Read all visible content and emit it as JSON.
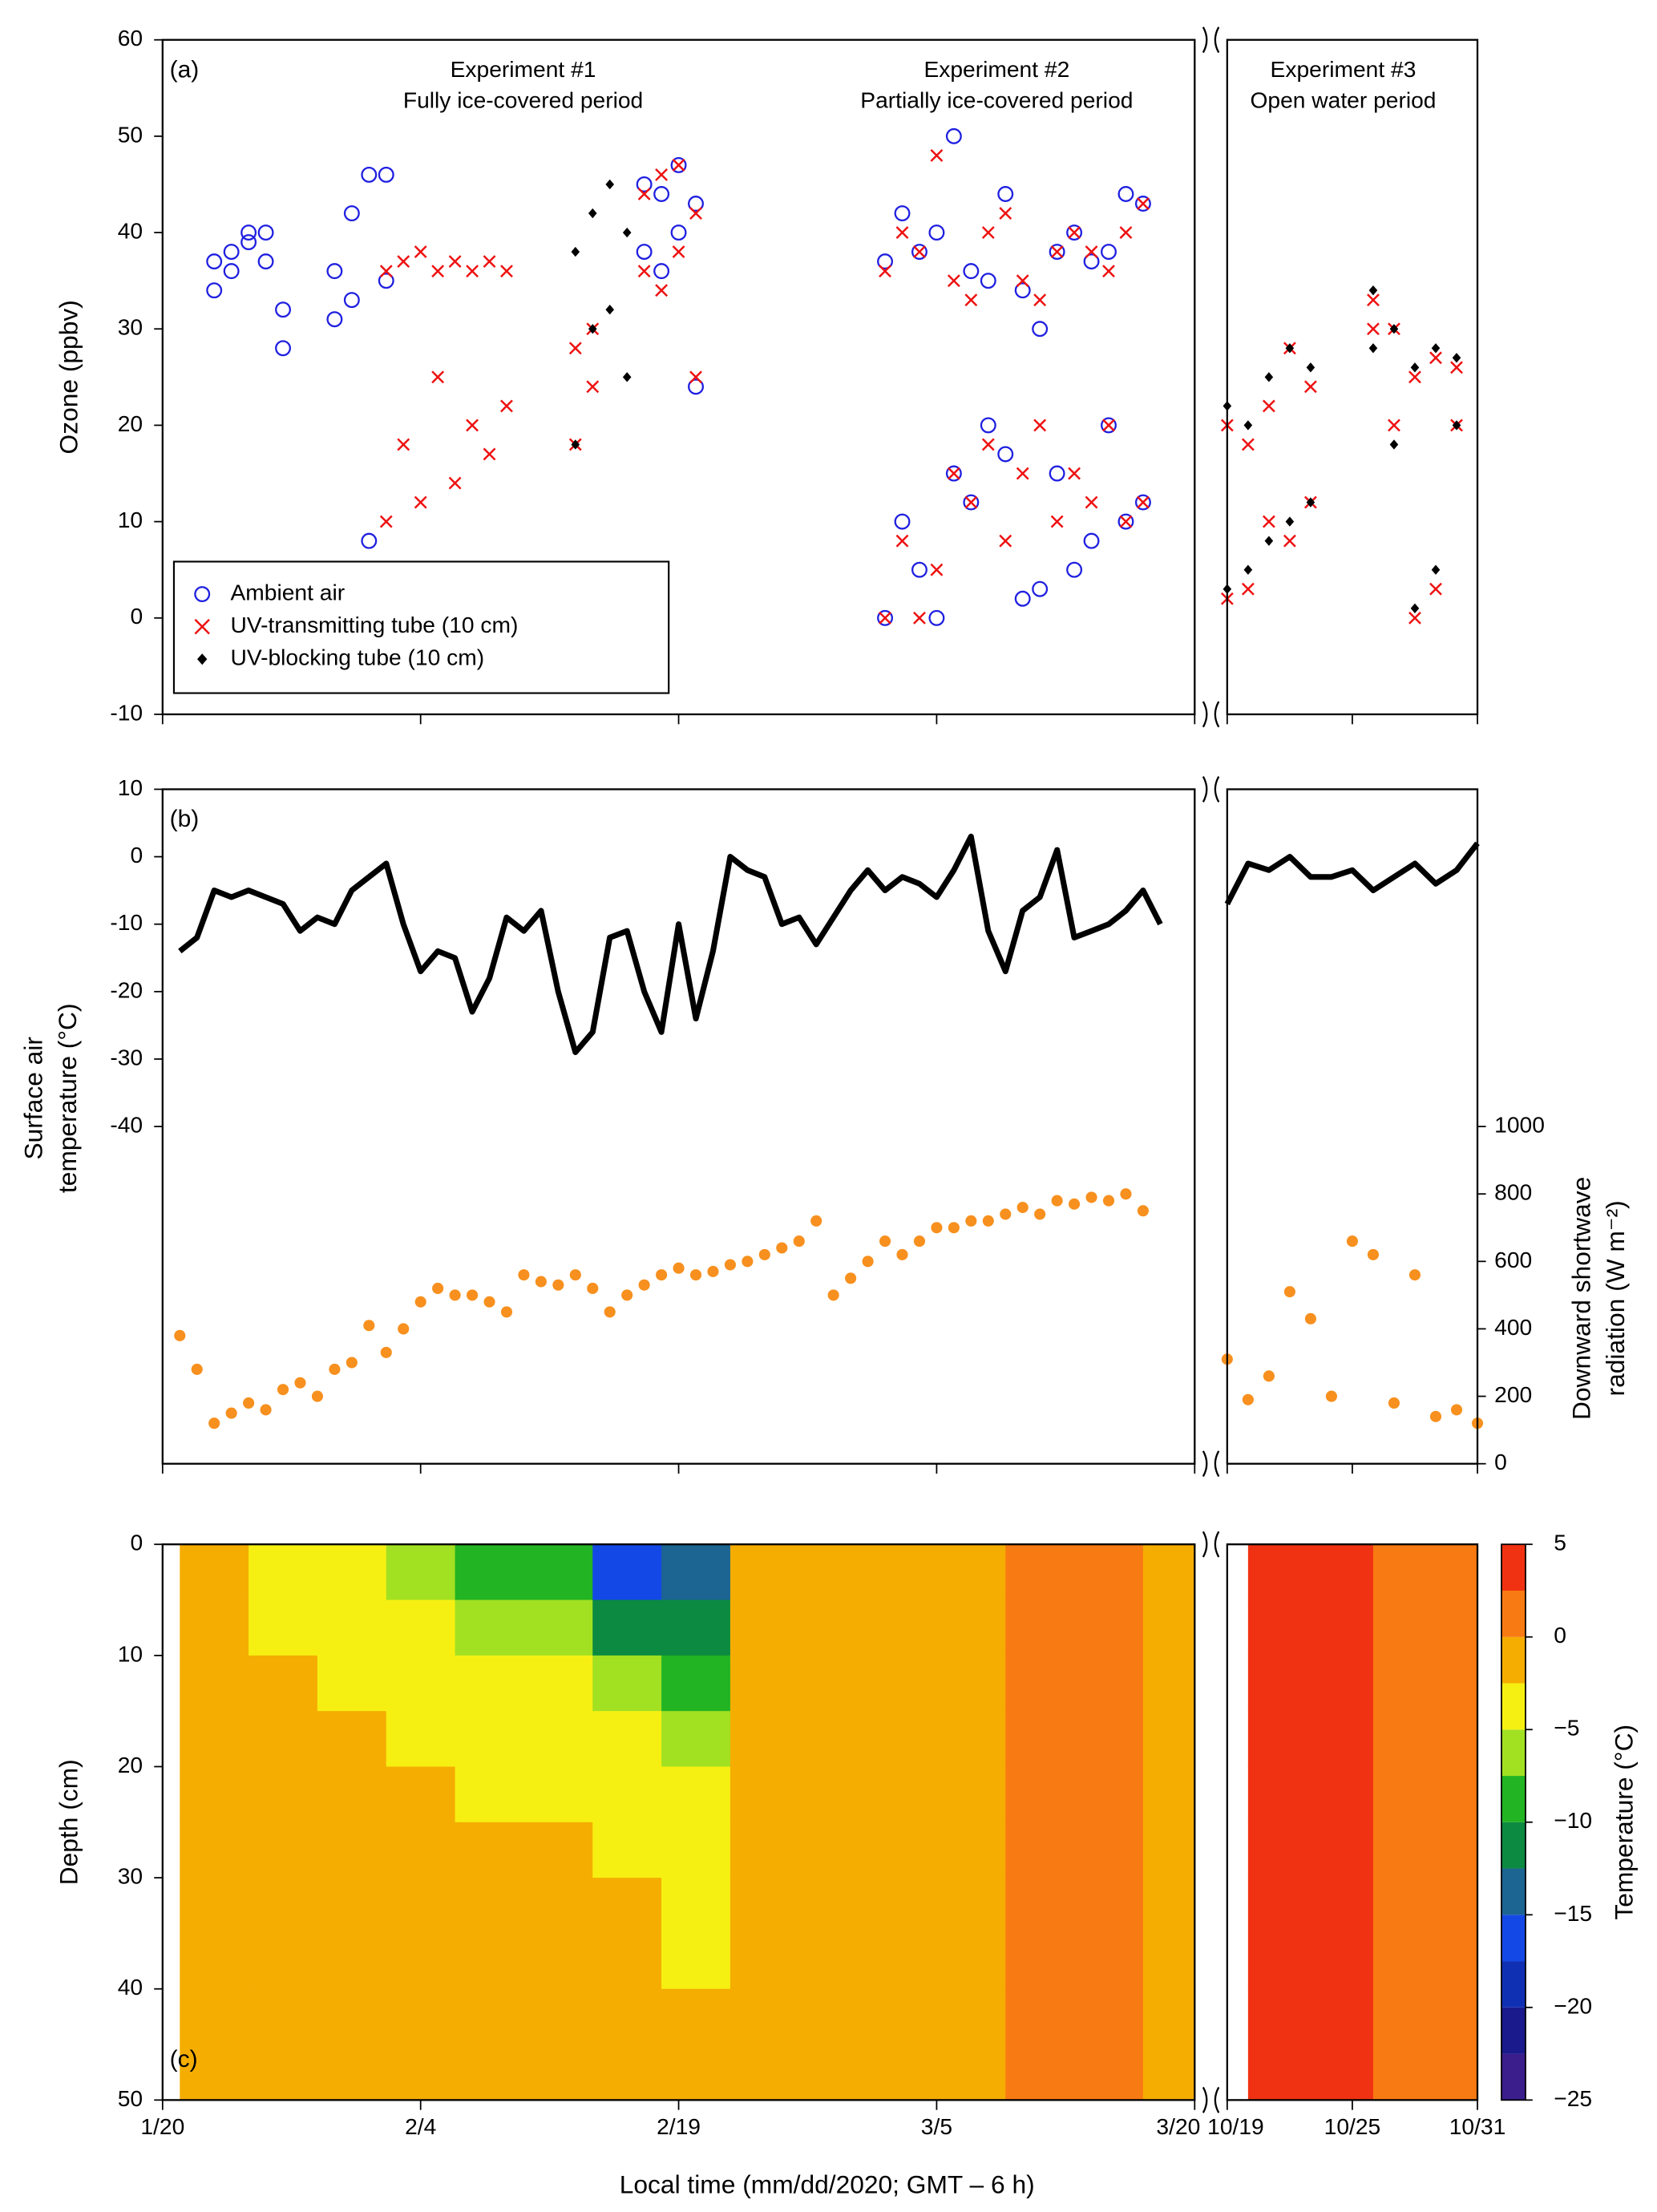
{
  "x_axis": {
    "label": "Local time (mm/dd/2020; GMT – 6 h)",
    "segments": [
      [
        "1/20",
        "3/20"
      ],
      [
        "10/19",
        "10/31"
      ]
    ],
    "xticks": [
      "1/20",
      "2/4",
      "2/19",
      "3/5",
      "3/20",
      "10/19",
      "10/25",
      "10/31"
    ]
  },
  "chart_data": [
    {
      "type": "scatter",
      "panel": "(a)",
      "ylabel": "Ozone (ppbv)",
      "annotations": [
        [
          "Experiment #1",
          "Fully ice-covered period"
        ],
        [
          "Experiment #2",
          "Partially ice-covered period"
        ],
        [
          "Experiment #3",
          "Open water period"
        ]
      ],
      "ylim": [
        -10,
        60
      ],
      "yticks": [
        -10,
        0,
        10,
        20,
        30,
        40,
        50,
        60
      ],
      "legend": "lower left",
      "series": [
        {
          "name": "Ambient air",
          "color": "#1f1fe0",
          "marker": "circle",
          "x": [
            "1/23",
            "1/23",
            "1/24",
            "1/24",
            "1/25",
            "1/25",
            "1/26",
            "1/26",
            "1/27",
            "1/27",
            "1/30",
            "1/30",
            "1/31",
            "1/31",
            "2/1",
            "2/1",
            "2/2",
            "2/2",
            "2/17",
            "2/17",
            "2/18",
            "2/18",
            "2/19",
            "2/19",
            "2/20",
            "2/20",
            "3/2",
            "3/2",
            "3/3",
            "3/3",
            "3/4",
            "3/4",
            "3/5",
            "3/5",
            "3/6",
            "3/6",
            "3/7",
            "3/7",
            "3/8",
            "3/8",
            "3/9",
            "3/9",
            "3/10",
            "3/10",
            "3/11",
            "3/11",
            "3/12",
            "3/12",
            "3/13",
            "3/13",
            "3/14",
            "3/14",
            "3/15",
            "3/15",
            "3/16",
            "3/16",
            "3/17",
            "3/17"
          ],
          "values": [
            34,
            37,
            36,
            38,
            39,
            40,
            37,
            40,
            28,
            32,
            31,
            36,
            33,
            42,
            8,
            46,
            35,
            46,
            38,
            45,
            36,
            44,
            40,
            47,
            24,
            43,
            0,
            37,
            10,
            42,
            5,
            38,
            0,
            40,
            15,
            50,
            12,
            36,
            20,
            35,
            17,
            44,
            2,
            34,
            3,
            30,
            15,
            38,
            5,
            40,
            8,
            37,
            20,
            38,
            10,
            44,
            12,
            43
          ]
        },
        {
          "name": "UV-transmitting tube (10 cm)",
          "color": "#ee1111",
          "marker": "x",
          "x": [
            "2/2",
            "2/2",
            "2/3",
            "2/3",
            "2/4",
            "2/4",
            "2/5",
            "2/5",
            "2/6",
            "2/6",
            "2/7",
            "2/7",
            "2/8",
            "2/8",
            "2/9",
            "2/9",
            "2/13",
            "2/13",
            "2/14",
            "2/14",
            "2/17",
            "2/17",
            "2/18",
            "2/18",
            "2/19",
            "2/19",
            "2/20",
            "2/20",
            "3/2",
            "3/2",
            "3/3",
            "3/3",
            "3/4",
            "3/4",
            "3/5",
            "3/5",
            "3/6",
            "3/6",
            "3/7",
            "3/7",
            "3/8",
            "3/8",
            "3/9",
            "3/9",
            "3/10",
            "3/10",
            "3/11",
            "3/11",
            "3/12",
            "3/12",
            "3/13",
            "3/13",
            "3/14",
            "3/14",
            "3/15",
            "3/15",
            "3/16",
            "3/16",
            "3/17",
            "3/17",
            "10/19",
            "10/19",
            "10/20",
            "10/20",
            "10/21",
            "10/21",
            "10/22",
            "10/22",
            "10/23",
            "10/23",
            "10/26",
            "10/26",
            "10/27",
            "10/27",
            "10/28",
            "10/28",
            "10/29",
            "10/29",
            "10/30",
            "10/30"
          ],
          "values": [
            10,
            36,
            18,
            37,
            12,
            38,
            25,
            36,
            14,
            37,
            20,
            36,
            17,
            37,
            22,
            36,
            18,
            28,
            24,
            30,
            36,
            44,
            34,
            46,
            38,
            47,
            25,
            42,
            0,
            36,
            8,
            40,
            0,
            38,
            5,
            48,
            15,
            35,
            12,
            33,
            18,
            40,
            8,
            42,
            15,
            35,
            20,
            33,
            10,
            38,
            15,
            40,
            12,
            38,
            20,
            36,
            10,
            40,
            12,
            43,
            2,
            20,
            3,
            18,
            10,
            22,
            8,
            28,
            12,
            24,
            30,
            33,
            20,
            30,
            0,
            25,
            3,
            27,
            20,
            26
          ]
        },
        {
          "name": "UV-blocking tube (10 cm)",
          "color": "#000000",
          "marker": "diamond",
          "x": [
            "2/13",
            "2/13",
            "2/14",
            "2/14",
            "2/15",
            "2/15",
            "2/16",
            "2/16",
            "10/19",
            "10/19",
            "10/20",
            "10/20",
            "10/21",
            "10/21",
            "10/22",
            "10/22",
            "10/23",
            "10/23",
            "10/26",
            "10/26",
            "10/27",
            "10/27",
            "10/28",
            "10/28",
            "10/29",
            "10/29",
            "10/30",
            "10/30"
          ],
          "values": [
            18,
            38,
            30,
            42,
            32,
            45,
            25,
            40,
            3,
            22,
            5,
            20,
            8,
            25,
            10,
            28,
            12,
            26,
            28,
            34,
            18,
            30,
            1,
            26,
            5,
            28,
            20,
            27
          ]
        }
      ]
    },
    {
      "type": "line",
      "panel": "(b)",
      "ylabel": [
        "Surface air",
        "temperature (°C)"
      ],
      "y2label": [
        "Downward shortwave",
        "radiation (W m⁻²)"
      ],
      "ylim": [
        -90,
        10
      ],
      "yticks": [
        -40,
        -30,
        -20,
        -10,
        0,
        10
      ],
      "y2lim": [
        0,
        2000
      ],
      "y2ticks": [
        0,
        200,
        400,
        600,
        800,
        1000
      ],
      "series": [
        {
          "type": "line",
          "color": "#000000",
          "x": [
            "1/21",
            "1/22",
            "1/23",
            "1/24",
            "1/25",
            "1/26",
            "1/27",
            "1/28",
            "1/29",
            "1/30",
            "1/31",
            "2/1",
            "2/2",
            "2/3",
            "2/4",
            "2/5",
            "2/6",
            "2/7",
            "2/8",
            "2/9",
            "2/10",
            "2/11",
            "2/12",
            "2/13",
            "2/14",
            "2/15",
            "2/16",
            "2/17",
            "2/18",
            "2/19",
            "2/20",
            "2/21",
            "2/22",
            "2/23",
            "2/24",
            "2/25",
            "2/26",
            "2/27",
            "2/28",
            "2/29",
            "3/1",
            "3/2",
            "3/3",
            "3/4",
            "3/5",
            "3/6",
            "3/7",
            "3/8",
            "3/9",
            "3/10",
            "3/11",
            "3/12",
            "3/13",
            "3/14",
            "3/15",
            "3/16",
            "3/17",
            "3/18",
            "3/20",
            "10/19",
            "10/20",
            "10/21",
            "10/22",
            "10/23",
            "10/24",
            "10/25",
            "10/26",
            "10/27",
            "10/28",
            "10/29",
            "10/30",
            "10/31"
          ],
          "values": [
            -14,
            -12,
            -5,
            -6,
            -5,
            -6,
            -7,
            -11,
            -9,
            -10,
            -5,
            -3,
            -1,
            -10,
            -17,
            -14,
            -15,
            -23,
            -18,
            -9,
            -11,
            -8,
            -20,
            -29,
            -26,
            -12,
            -11,
            -20,
            -26,
            -10,
            -24,
            -14,
            0,
            -2,
            -3,
            -10,
            -9,
            -13,
            -9,
            -5,
            -2,
            -5,
            -3,
            -4,
            -6,
            -2,
            3,
            -11,
            -17,
            -8,
            -6,
            1,
            -12,
            -11,
            -10,
            -8,
            -5,
            -10,
            null,
            -7,
            -1,
            -2,
            0,
            -3,
            -3,
            -2,
            -5,
            -3,
            -1,
            -4,
            -2,
            2
          ]
        },
        {
          "type": "scatter",
          "axis": "y2",
          "color": "#f7901e",
          "x": [
            "1/21",
            "1/22",
            "1/23",
            "1/24",
            "1/25",
            "1/26",
            "1/27",
            "1/28",
            "1/29",
            "1/30",
            "1/31",
            "2/1",
            "2/2",
            "2/3",
            "2/4",
            "2/5",
            "2/6",
            "2/7",
            "2/8",
            "2/9",
            "2/10",
            "2/11",
            "2/12",
            "2/13",
            "2/14",
            "2/15",
            "2/16",
            "2/17",
            "2/18",
            "2/19",
            "2/20",
            "2/21",
            "2/22",
            "2/23",
            "2/24",
            "2/25",
            "2/26",
            "2/27",
            "2/28",
            "2/29",
            "3/1",
            "3/2",
            "3/3",
            "3/4",
            "3/5",
            "3/6",
            "3/7",
            "3/8",
            "3/9",
            "3/10",
            "3/11",
            "3/12",
            "3/13",
            "3/14",
            "3/15",
            "3/16",
            "3/17",
            "10/19",
            "10/20",
            "10/21",
            "10/22",
            "10/23",
            "10/24",
            "10/25",
            "10/26",
            "10/27",
            "10/28",
            "10/29",
            "10/30",
            "10/31"
          ],
          "values": [
            380,
            280,
            120,
            150,
            180,
            160,
            220,
            240,
            200,
            280,
            300,
            410,
            330,
            400,
            480,
            520,
            500,
            500,
            480,
            450,
            560,
            540,
            530,
            560,
            520,
            450,
            500,
            530,
            560,
            580,
            560,
            570,
            590,
            600,
            620,
            640,
            660,
            720,
            500,
            550,
            600,
            660,
            620,
            660,
            700,
            700,
            720,
            720,
            740,
            760,
            740,
            780,
            770,
            790,
            780,
            800,
            750,
            310,
            190,
            260,
            510,
            430,
            200,
            660,
            620,
            180,
            560,
            140,
            160,
            120
          ]
        }
      ]
    },
    {
      "type": "heatmap",
      "panel": "(c)",
      "ylabel": "Depth (cm)",
      "ylim": [
        50,
        0
      ],
      "yticks": [
        0,
        10,
        20,
        30,
        40,
        50
      ],
      "x": [
        "1/21",
        "1/25",
        "1/29",
        "2/2",
        "2/6",
        "2/10",
        "2/14",
        "2/18",
        "2/22",
        "2/26",
        "3/1",
        "3/5",
        "3/9",
        "3/13",
        "3/17",
        "10/20",
        "10/22",
        "10/24",
        "10/26",
        "10/28",
        "10/30"
      ],
      "y": [
        0,
        5,
        10,
        15,
        20,
        25,
        30,
        40
      ],
      "values": [
        [
          -2,
          -1.5,
          -1.5,
          -1.5,
          -1.5,
          -1.5,
          -1.5,
          -1.5
        ],
        [
          -4,
          -3,
          -1.5,
          -1.5,
          -1.5,
          -1.5,
          -1.5,
          -1.5
        ],
        [
          -4,
          -4,
          -3,
          -1.5,
          -1.5,
          -1.5,
          -1.5,
          -1.5
        ],
        [
          -6,
          -4,
          -3,
          -3,
          -1.5,
          -1.5,
          -1.5,
          -1.5
        ],
        [
          -8,
          -6,
          -4,
          -4,
          -3,
          -1.5,
          -1.5,
          -1.5
        ],
        [
          -10,
          -7,
          -5,
          -4,
          -4,
          -1.5,
          -1.5,
          -1.5
        ],
        [
          -16,
          -11,
          -7,
          -5,
          -4,
          -3,
          -1.5,
          -1.5
        ],
        [
          -14,
          -11,
          -8,
          -6,
          -4,
          -3,
          -2.6,
          -1.5
        ],
        [
          -1.5,
          -1.5,
          -1.5,
          -1.5,
          -1.5,
          -1.5,
          -1.5,
          -1.5
        ],
        [
          -1.5,
          -1.5,
          -1.5,
          -1.5,
          -1.5,
          -1.5,
          -1.5,
          -1.5
        ],
        [
          -1.5,
          -1.5,
          -1.5,
          -1.5,
          -1.5,
          -1.5,
          -1.5,
          -1.5
        ],
        [
          -1,
          -1,
          -1,
          -1,
          -1,
          -1,
          -1,
          -1
        ],
        [
          0.5,
          0.5,
          0.5,
          0.5,
          0.5,
          0.5,
          0.5,
          0.5
        ],
        [
          0.5,
          0.5,
          0.5,
          0.5,
          0.5,
          0.5,
          0.5,
          0.5
        ],
        [
          -1.5,
          -1.5,
          -1.5,
          -1.5,
          -1.5,
          -1.5,
          -1.5,
          -1.5
        ],
        [
          4,
          4,
          4,
          4,
          4,
          4,
          4,
          4
        ],
        [
          3.5,
          3.5,
          3.5,
          3.5,
          3.5,
          3.5,
          3.5,
          3.5
        ],
        [
          3,
          3,
          3,
          3,
          3,
          3,
          3,
          3
        ],
        [
          2,
          2,
          2,
          2,
          2,
          2,
          2,
          2
        ],
        [
          1.5,
          1.5,
          1.5,
          1.5,
          1.5,
          1.5,
          1.5,
          1.5
        ],
        [
          1.5,
          1.5,
          1.5,
          1.5,
          1.5,
          1.5,
          1.5,
          1.5
        ]
      ],
      "colorbar": {
        "label": "Temperature (°C)",
        "levels": [
          -25,
          -22.5,
          -20,
          -17.5,
          -15,
          -12.5,
          -10,
          -7.5,
          -5,
          -2.5,
          0,
          2.5,
          5
        ],
        "colors": [
          "#3b1d8c",
          "#1a1a8c",
          "#1030b4",
          "#1448e6",
          "#1c6492",
          "#0c8a42",
          "#22b422",
          "#a2e022",
          "#f6f012",
          "#f5ad02",
          "#f87a12",
          "#f03212"
        ],
        "ticks": [
          5,
          0,
          {
            "value": -5,
            "label": "−5"
          },
          {
            "value": -10,
            "label": "−10"
          },
          {
            "value": -15,
            "label": "−15"
          },
          {
            "value": -20,
            "label": "−20"
          },
          {
            "value": -25,
            "label": "−25"
          }
        ]
      }
    }
  ]
}
